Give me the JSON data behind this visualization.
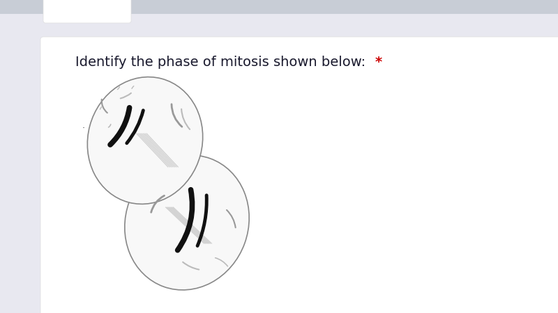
{
  "background_color": "#e8e8f0",
  "card_color": "#ffffff",
  "title_text": "Identify the phase of mitosis shown below: ",
  "title_asterisk": "*",
  "title_fontsize": 14,
  "asterisk_color": "#cc0000",
  "cell_fill": "#f8f8f8",
  "cell_edge": "#888888",
  "chrom_dark": "#111111",
  "chrom_gray": "#999999",
  "chrom_light": "#bbbbbb",
  "spindle_color": "#cccccc"
}
